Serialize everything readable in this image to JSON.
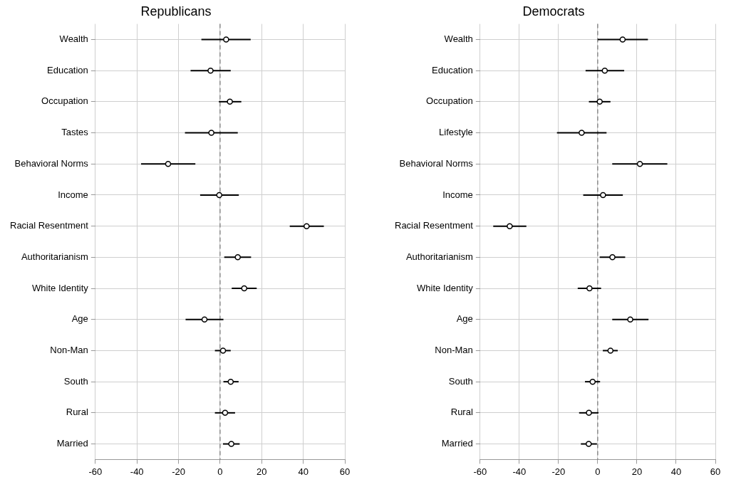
{
  "chart_data": [
    {
      "type": "scatter",
      "title": "Republicans",
      "orientation": "horizontal",
      "marker": "circle",
      "color": "#000000",
      "grid": true,
      "categories": [
        "Wealth",
        "Education",
        "Occupation",
        "Tastes",
        "Behavioral Norms",
        "Income",
        "Racial Resentment",
        "Authoritarianism",
        "White Identity",
        "Age",
        "Non-Man",
        "South",
        "Rural",
        "Married"
      ],
      "values": [
        2.9,
        -4.6,
        4.7,
        -4.2,
        -25,
        -0.4,
        41.6,
        8.5,
        11.6,
        -7.5,
        1.4,
        5.1,
        2.4,
        5.4
      ],
      "errors": [
        [
          -9,
          14.7
        ],
        [
          -14.2,
          5.1
        ],
        [
          -0.6,
          10.2
        ],
        [
          -16.9,
          8.5
        ],
        [
          -38,
          -11.9
        ],
        [
          -9.6,
          9
        ],
        [
          33.5,
          49.9
        ],
        [
          2,
          14.9
        ],
        [
          5.6,
          17.6
        ],
        [
          -16.6,
          1.6
        ],
        [
          -2.5,
          5.1
        ],
        [
          1.6,
          8.9
        ],
        [
          -2.5,
          7.2
        ],
        [
          1.4,
          9.4
        ]
      ],
      "xlim": [
        -60,
        60
      ],
      "xticks": [
        -60,
        -40,
        -20,
        0,
        20,
        40,
        60
      ],
      "ref_lines": [
        {
          "axis": "x",
          "value": 0,
          "line_style": "dashed",
          "color": "#777777"
        }
      ]
    },
    {
      "type": "scatter",
      "title": "Democrats",
      "orientation": "horizontal",
      "marker": "circle",
      "color": "#000000",
      "grid": true,
      "categories": [
        "Wealth",
        "Education",
        "Occupation",
        "Lifestyle",
        "Behavioral Norms",
        "Income",
        "Racial Resentment",
        "Authoritarianism",
        "White Identity",
        "Age",
        "Non-Man",
        "South",
        "Rural",
        "Married"
      ],
      "values": [
        12.7,
        3.6,
        1,
        -8.2,
        21.5,
        2.7,
        -44.9,
        7.5,
        -4.2,
        16.6,
        6.5,
        -2.6,
        -4.5,
        -4.6
      ],
      "errors": [
        [
          0,
          25.6
        ],
        [
          -6.2,
          13.5
        ],
        [
          -4.5,
          6.5
        ],
        [
          -20.8,
          4.5
        ],
        [
          7.4,
          35.5
        ],
        [
          -7.4,
          12.8
        ],
        [
          -53.3,
          -36.4
        ],
        [
          1,
          14
        ],
        [
          -10.2,
          1.7
        ],
        [
          7.4,
          25.9
        ],
        [
          2.6,
          10.2
        ],
        [
          -6.5,
          1.2
        ],
        [
          -9.5,
          0.4
        ],
        [
          -8.6,
          -0.4
        ]
      ],
      "xlim": [
        -60,
        60
      ],
      "xticks": [
        -60,
        -40,
        -20,
        0,
        20,
        40,
        60
      ],
      "ref_lines": [
        {
          "axis": "x",
          "value": 0,
          "line_style": "dashed",
          "color": "#777777"
        }
      ]
    }
  ]
}
